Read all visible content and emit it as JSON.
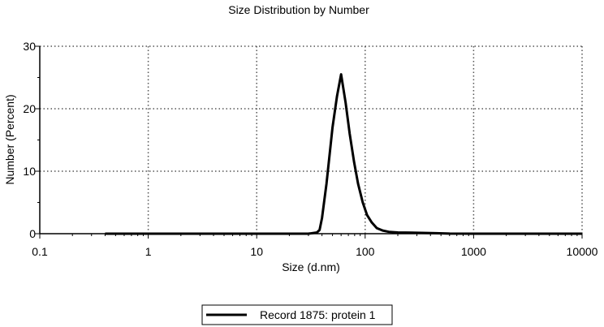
{
  "chart_data": {
    "type": "line",
    "title": "Size Distribution by Number",
    "xlabel": "Size (d.nm)",
    "ylabel": "Number (Percent)",
    "x_scale": "log",
    "xlim": [
      0.1,
      10000
    ],
    "ylim": [
      0,
      30
    ],
    "x_ticks": [
      0.1,
      1,
      10,
      100,
      1000,
      10000
    ],
    "x_tick_labels": [
      "0.1",
      "1",
      "10",
      "100",
      "1000",
      "10000"
    ],
    "y_ticks": [
      0,
      10,
      20,
      30
    ],
    "y_tick_labels": [
      "0",
      "10",
      "20",
      "30"
    ],
    "grid": true,
    "legend_position": "bottom-center",
    "series": [
      {
        "name": "Record 1875: protein 1",
        "color": "#000000",
        "x": [
          0.4,
          10,
          30,
          36,
          38,
          40,
          44,
          50,
          55,
          60,
          66,
          72,
          79,
          86,
          95,
          104,
          115,
          128,
          145,
          165,
          200,
          300,
          450,
          600,
          1000,
          10000
        ],
        "y": [
          0,
          0,
          0,
          0.2,
          0.6,
          2.5,
          8,
          17,
          22,
          25.5,
          21,
          16,
          11.5,
          8,
          5,
          3,
          1.8,
          0.9,
          0.5,
          0.3,
          0.2,
          0.15,
          0.08,
          0.02,
          0,
          0
        ]
      }
    ]
  }
}
